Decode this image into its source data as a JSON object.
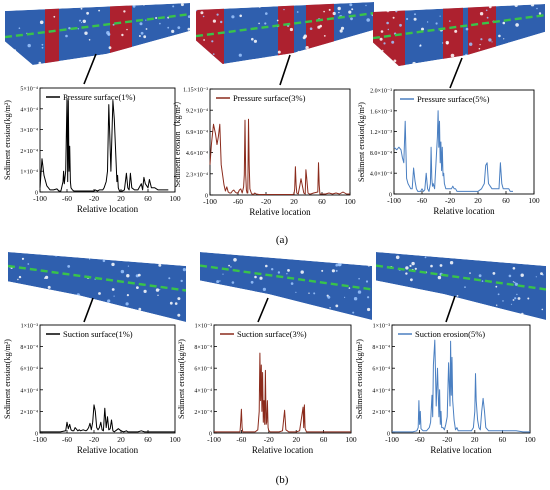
{
  "figure": {
    "label_a": "(a)",
    "label_b": "(b)"
  },
  "colors": {
    "blade_blue": "#2f5fae",
    "erosion_red": "#b81c24",
    "streamline_green": "#39c34a",
    "panel1": "#000000",
    "panel2": "#8b2b1c",
    "panel3": "#4a7fc1"
  },
  "chart_data": [
    {
      "type": "line",
      "panel": "a-1",
      "legend": "Pressure surface(1%)",
      "xlabel": "Relative location",
      "ylabel": "Sediment erosion(kg/m²)",
      "xlim": [
        -100,
        100
      ],
      "xticks": [
        "-100",
        "-60",
        "-20",
        "20",
        "60",
        "100"
      ],
      "ylim": [
        0,
        0.0005
      ],
      "yticks": [
        "0",
        "1×10⁻⁴",
        "2×10⁻⁴",
        "3×10⁻⁴",
        "4×10⁻⁴",
        "5×10⁻⁴"
      ],
      "series": [
        {
          "color": "#000000",
          "x": [
            -100,
            -97,
            -94,
            -90,
            -85,
            -80,
            -75,
            -72,
            -69,
            -66,
            -65,
            -64,
            -62,
            -60,
            -59,
            -58,
            -57,
            -56,
            -55,
            -54,
            -52,
            -50,
            -45,
            -40,
            -35,
            -30,
            -25,
            -20,
            -18,
            -15,
            -12,
            -9,
            -7,
            -5,
            -2,
            0,
            2,
            5,
            8,
            10,
            12,
            14,
            15,
            16,
            17,
            18,
            20,
            22,
            25,
            28,
            30,
            32,
            34,
            36,
            40,
            45,
            50,
            52,
            54,
            56,
            58,
            60,
            62,
            65,
            70,
            75,
            80,
            85,
            90
          ],
          "y": [
            2e-05,
            0.00016,
            8e-05,
            3e-05,
            1e-05,
            1e-05,
            1.5e-05,
            5e-06,
            5e-06,
            5e-05,
            0.0001,
            4e-05,
            0.0001,
            0.00045,
            5e-05,
            0.00044,
            0.0001,
            0.00022,
            5e-05,
            2e-05,
            1e-05,
            5e-06,
            5e-06,
            5e-06,
            5e-06,
            5e-06,
            5e-06,
            5e-06,
            1e-05,
            5e-06,
            1e-05,
            1e-05,
            1e-05,
            2e-05,
            5e-05,
            0.0001,
            0.00042,
            0.0001,
            0.00044,
            0.00035,
            0.0002,
            5e-05,
            8e-05,
            2e-05,
            1e-05,
            5e-06,
            5e-06,
            5e-06,
            1e-05,
            9e-05,
            2e-05,
            1e-05,
            9e-05,
            2e-05,
            1e-05,
            1e-05,
            4e-05,
            1e-05,
            7e-05,
            4e-05,
            3e-05,
            2e-05,
            6e-05,
            2e-05,
            2e-05,
            1e-05,
            1e-05,
            1e-05,
            1e-05
          ]
        }
      ]
    },
    {
      "type": "line",
      "panel": "a-2",
      "legend": "Pressure surface(3%)",
      "xlabel": "Relative location",
      "ylabel": "Sediment erosion（kg/m²）",
      "xlim": [
        -100,
        100
      ],
      "xticks": [
        "-100",
        "-60",
        "-20",
        "20",
        "60",
        "100"
      ],
      "ylim": [
        0,
        0.00105
      ],
      "yticks": [
        "0",
        "2.3×10⁻⁴",
        "4.6×10⁻⁴",
        "6.9×10⁻⁴",
        "9.2×10⁻⁴",
        "1.15×10⁻³"
      ],
      "series": [
        {
          "color": "#8b2b1c",
          "x": [
            -100,
            -98,
            -95,
            -92,
            -90,
            -88,
            -86,
            -84,
            -82,
            -80,
            -78,
            -76,
            -74,
            -72,
            -70,
            -68,
            -66,
            -64,
            -62,
            -60,
            -58,
            -56,
            -54,
            -52,
            -51,
            -50,
            -49,
            -48,
            -47,
            -46,
            -45,
            -44,
            -43,
            -42,
            -41,
            -40,
            -38,
            -36,
            -34,
            -30,
            -25,
            -20,
            -15,
            -10,
            -5,
            0,
            5,
            10,
            15,
            18,
            20,
            21,
            22,
            23,
            24,
            26,
            28,
            30,
            34,
            36,
            37,
            38,
            40,
            42,
            44,
            48,
            54,
            55,
            56,
            57,
            60,
            65,
            70,
            75,
            80,
            85,
            90,
            95,
            100
          ],
          "y": [
            0.0003,
            0.0005,
            0.0007,
            0.0006,
            0.0005,
            0.00058,
            0.0007,
            0.0003,
            0.0002,
            0.0001,
            4e-05,
            8e-05,
            3e-05,
            2e-05,
            2e-05,
            4e-05,
            5e-05,
            3e-05,
            2e-05,
            2e-05,
            5e-05,
            6e-05,
            2e-05,
            8e-05,
            0.0002,
            0.00074,
            0.0002,
            5e-05,
            2e-05,
            2e-05,
            0.00075,
            0.0003,
            6e-05,
            4e-05,
            2e-05,
            1e-05,
            5e-06,
            2e-05,
            1e-05,
            5e-06,
            5e-06,
            5e-06,
            5e-06,
            5e-06,
            5e-06,
            5e-06,
            5e-06,
            5e-06,
            5e-06,
            5e-06,
            1e-05,
            6e-05,
            0.00028,
            0.0001,
            2e-05,
            1e-05,
            8e-05,
            0.00016,
            2e-05,
            1e-05,
            0.00025,
            0.00018,
            2e-05,
            1e-05,
            1e-05,
            2e-05,
            3e-05,
            0.00032,
            0.0001,
            1e-05,
            1e-05,
            1e-05,
            2e-05,
            1e-05,
            2e-05,
            1e-05,
            3e-05,
            1e-05,
            1e-05
          ]
        }
      ]
    },
    {
      "type": "line",
      "panel": "a-3",
      "legend": "Pressure surface(5%)",
      "xlabel": "Relative location",
      "ylabel": "Sediment erosion(kg/m²)",
      "xlim": [
        -100,
        100
      ],
      "xticks": [
        "-100",
        "-60",
        "-20",
        "20",
        "60",
        "100"
      ],
      "ylim": [
        0,
        0.002
      ],
      "yticks": [
        "0",
        "4.0×10⁻⁴",
        "8.0×10⁻⁴",
        "1.2×10⁻³",
        "1.6×10⁻³",
        "2.0×10⁻³"
      ],
      "series": [
        {
          "color": "#4a7fc1",
          "x": [
            -100,
            -96,
            -93,
            -90,
            -88,
            -86,
            -84,
            -82,
            -80,
            -78,
            -76,
            -74,
            -72,
            -70,
            -68,
            -66,
            -64,
            -62,
            -60,
            -58,
            -56,
            -54,
            -52,
            -50,
            -48,
            -47,
            -46,
            -45,
            -44,
            -42,
            -40,
            -38,
            -37,
            -36,
            -35,
            -34,
            -33,
            -32,
            -31,
            -30,
            -29,
            -28,
            -26,
            -24,
            -22,
            -20,
            -18,
            -16,
            -14,
            -12,
            -10,
            -8,
            -6,
            -4,
            0,
            5,
            10,
            15,
            20,
            25,
            27,
            29,
            31,
            33,
            35,
            40,
            45,
            50,
            52,
            54,
            56,
            58,
            60,
            62,
            64,
            66,
            68,
            70
          ],
          "y": [
            0.0009,
            0.00085,
            0.0009,
            0.00085,
            0.0007,
            0.0006,
            0.0014,
            0.0003,
            0.0002,
            0.00015,
            0.0001,
            0.0001,
            0.0005,
            0.00025,
            0.0001,
            5e-05,
            5e-05,
            5e-05,
            0.0001,
            5e-05,
            8e-05,
            0.0004,
            0.0001,
            5e-05,
            0.0002,
            0.0009,
            0.0003,
            0.00015,
            0.0002,
            0.0001,
            0.0006,
            0.0011,
            0.0016,
            0.0009,
            0.0014,
            0.0006,
            0.001,
            0.00045,
            0.0009,
            0.00035,
            0.0004,
            0.0002,
            0.0001,
            0.0001,
            0.0001,
            0.0001,
            0.0001,
            0.00015,
            0.0001,
            0.0001,
            5e-05,
            5e-05,
            5e-05,
            5e-05,
            5e-05,
            5e-05,
            5e-05,
            5e-05,
            5e-05,
            0.0001,
            0.00015,
            0.0002,
            0.00055,
            0.0006,
            0.0002,
            0.0001,
            0.0001,
            0.0001,
            0.0006,
            0.0002,
            0.0001,
            0.0001,
            0.0001,
            0.0001,
            0.0001,
            5e-05,
            5e-05,
            5e-05
          ]
        }
      ]
    },
    {
      "type": "line",
      "panel": "b-1",
      "legend": "Suction surface(1%)",
      "xlabel": "Relative location",
      "ylabel": "Sediment erosion(kg/m²)",
      "xlim": [
        -100,
        100
      ],
      "xticks": [
        "-100",
        "-60",
        "-20",
        "20",
        "60",
        "100"
      ],
      "ylim": [
        0,
        0.001
      ],
      "yticks": [
        "0",
        "2×10⁻⁴",
        "4×10⁻⁴",
        "6×10⁻⁴",
        "8×10⁻⁴",
        "1×10⁻³"
      ],
      "series": [
        {
          "color": "#000000",
          "x": [
            -100,
            -90,
            -80,
            -70,
            -62,
            -60,
            -58,
            -56,
            -54,
            -52,
            -50,
            -48,
            -44,
            -42,
            -40,
            -36,
            -32,
            -30,
            -28,
            -26,
            -24,
            -22,
            -20,
            -18,
            -16,
            -14,
            -12,
            -10,
            -8,
            -6,
            -4,
            -2,
            0,
            2,
            4,
            6,
            8,
            10,
            12,
            16,
            20,
            24,
            28,
            30,
            34,
            40,
            45,
            50,
            55,
            60,
            70,
            80,
            90,
            100
          ],
          "y": [
            1e-05,
            1e-05,
            1e-05,
            1e-05,
            2e-05,
            0.0001,
            4e-05,
            8e-05,
            3e-05,
            2e-05,
            2e-05,
            5e-05,
            2e-05,
            3e-05,
            2e-05,
            3e-05,
            2e-05,
            3e-05,
            5e-05,
            9e-05,
            3e-05,
            0.0001,
            0.00026,
            0.0002,
            5e-05,
            3e-05,
            5e-05,
            0.0001,
            3e-05,
            2e-05,
            0.00023,
            5e-05,
            0.00015,
            3e-05,
            4e-05,
            0.00012,
            2e-05,
            1e-05,
            2e-05,
            4e-05,
            2e-05,
            1e-05,
            2e-05,
            1e-05,
            1e-05,
            1e-05,
            1e-05,
            2e-05,
            1e-05,
            1e-05,
            1e-05,
            1e-05,
            1e-05,
            1e-05
          ]
        }
      ]
    },
    {
      "type": "line",
      "panel": "b-2",
      "legend": "Suction surface(3%)",
      "xlabel": "Relative location",
      "ylabel": "Sediment erosion(kg/m²)",
      "xlim": [
        -100,
        100
      ],
      "xticks": [
        "-100",
        "-60",
        "-20",
        "20",
        "60",
        "100"
      ],
      "ylim": [
        0,
        0.001
      ],
      "yticks": [
        "0",
        "2×10⁻⁴",
        "4×10⁻⁴",
        "6×10⁻⁴",
        "8×10⁻⁴",
        "1×10⁻³"
      ],
      "series": [
        {
          "color": "#8b2b1c",
          "x": [
            -100,
            -80,
            -70,
            -62,
            -61,
            -60,
            -59,
            -58,
            -50,
            -40,
            -36,
            -34,
            -33,
            -32,
            -31,
            -30,
            -29,
            -28,
            -27,
            -26,
            -25,
            -24,
            -23,
            -22,
            -21,
            -20,
            -18,
            -16,
            -14,
            -10,
            -5,
            0,
            3,
            5,
            7,
            9,
            11,
            15,
            20,
            25,
            30,
            31,
            32,
            33,
            35,
            40,
            50,
            60,
            70,
            80,
            90,
            100
          ],
          "y": [
            1e-05,
            1e-05,
            1e-05,
            1e-05,
            0.0001,
            0.00022,
            5e-05,
            1e-05,
            1e-05,
            1e-05,
            3e-05,
            0.0002,
            0.00074,
            0.0003,
            0.00063,
            0.0002,
            0.00056,
            0.0001,
            0.0003,
            8e-05,
            0.00058,
            8e-05,
            0.0001,
            0.0003,
            5e-05,
            2e-05,
            1e-05,
            1e-05,
            1e-05,
            1e-05,
            1e-05,
            2e-05,
            0.00021,
            3e-05,
            2e-05,
            1e-05,
            1e-05,
            1e-05,
            1e-05,
            2e-05,
            0.00024,
            5e-05,
            0.00026,
            4e-05,
            1e-05,
            1e-05,
            1e-05,
            1e-05,
            1e-05,
            1e-05,
            1e-05,
            1e-05
          ]
        }
      ]
    },
    {
      "type": "line",
      "panel": "b-3",
      "legend": "Suction erosion(5%)",
      "xlabel": "Relative location",
      "ylabel": "Sediment erosion(kg/m²)",
      "xlim": [
        -100,
        100
      ],
      "xticks": [
        "-100",
        "-60",
        "-20",
        "20",
        "60",
        "100"
      ],
      "ylim": [
        0,
        0.001
      ],
      "yticks": [
        "0",
        "2×10⁻⁴",
        "4×10⁻⁴",
        "6×10⁻⁴",
        "8×10⁻⁴",
        "1×10⁻³"
      ],
      "series": [
        {
          "color": "#4a7fc1",
          "x": [
            -100,
            -80,
            -70,
            -64,
            -62,
            -61,
            -60,
            -59,
            -58,
            -55,
            -50,
            -46,
            -44,
            -42,
            -41,
            -40,
            -38,
            -36,
            -34,
            -32,
            -31,
            -30,
            -29,
            -28,
            -26,
            -24,
            -22,
            -20,
            -18,
            -16,
            -15,
            -14,
            -13,
            -12,
            -10,
            -8,
            -6,
            -4,
            0,
            5,
            10,
            15,
            18,
            20,
            21,
            22,
            24,
            26,
            28,
            30,
            32,
            34,
            36,
            40,
            45,
            50,
            60,
            70,
            80,
            90,
            100
          ],
          "y": [
            1e-05,
            1e-05,
            1e-05,
            2e-05,
            5e-05,
            0.0003,
            8e-05,
            0.0002,
            4e-05,
            2e-05,
            2e-05,
            5e-05,
            0.0001,
            0.00035,
            0.00015,
            0.00063,
            0.00086,
            0.00025,
            0.0006,
            0.00015,
            0.0004,
            8e-05,
            0.0002,
            5e-05,
            5e-05,
            3e-05,
            8e-05,
            0.00015,
            0.00065,
            0.00025,
            0.00085,
            0.00035,
            0.0007,
            0.0003,
            0.00012,
            3e-05,
            5e-05,
            2e-05,
            2e-05,
            2e-05,
            2e-05,
            2e-05,
            5e-05,
            0.0002,
            0.00055,
            0.0003,
            0.00012,
            5e-05,
            3e-05,
            0.0002,
            0.00032,
            0.0002,
            5e-05,
            2e-05,
            2e-05,
            2e-05,
            2e-05,
            2e-05,
            2e-05,
            1e-05,
            1e-05
          ]
        }
      ]
    }
  ]
}
